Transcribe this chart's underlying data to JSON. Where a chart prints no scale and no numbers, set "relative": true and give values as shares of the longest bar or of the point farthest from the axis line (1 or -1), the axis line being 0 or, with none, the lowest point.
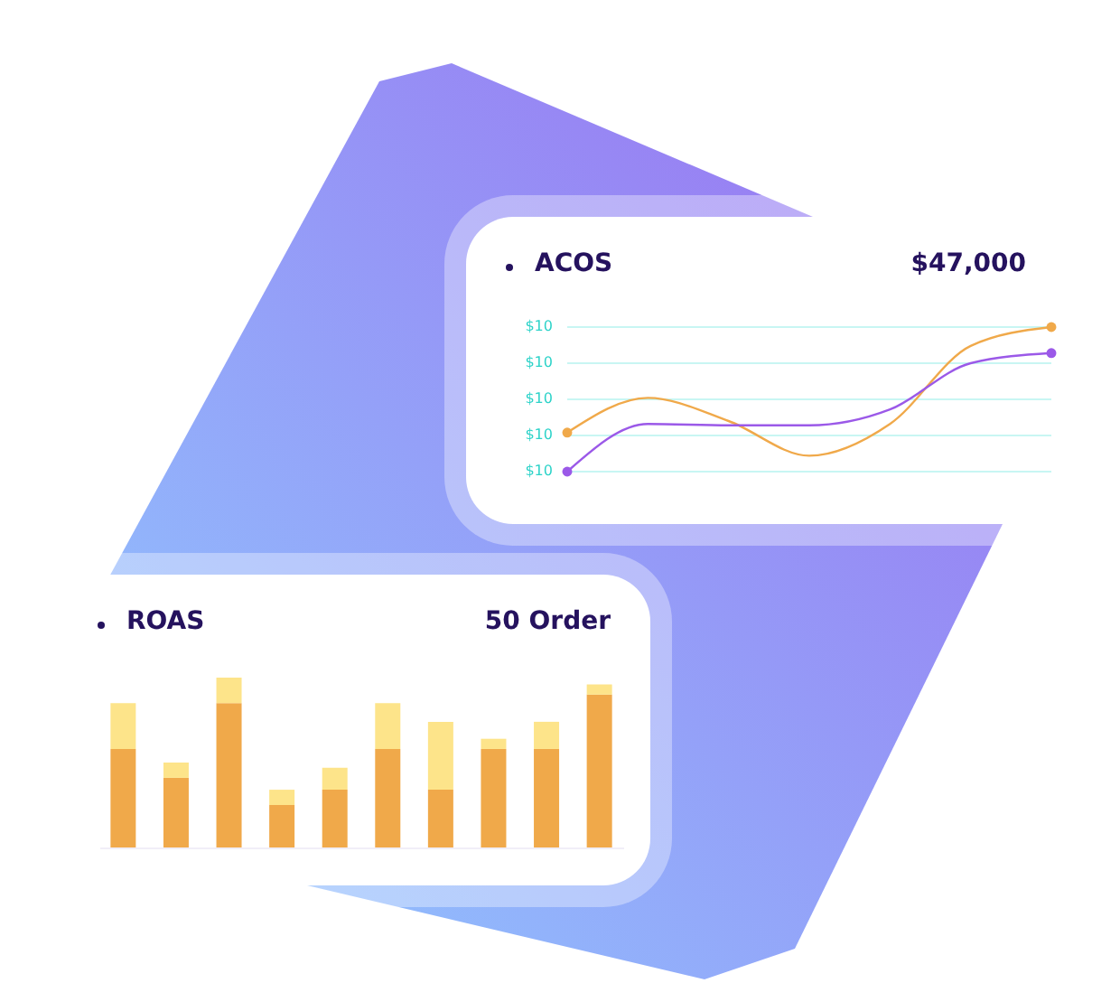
{
  "chart_data": [
    {
      "type": "line",
      "title": "ACOS",
      "subtitle": "$47,000",
      "categories": [
        null,
        null,
        null,
        null,
        null,
        null,
        null
      ],
      "relative": true,
      "ref_lines": [
        {
          "axis": "y",
          "value": 1,
          "color": "#c8f6f3"
        },
        {
          "axis": "y",
          "value": 0.75,
          "color": "#c8f6f3"
        },
        {
          "axis": "y",
          "value": 0.5,
          "color": "#c8f6f3"
        },
        {
          "axis": "y",
          "value": 0.25,
          "color": "#c8f6f3"
        },
        {
          "axis": "y",
          "value": 0,
          "color": "#c8f6f3"
        }
      ],
      "annotations": [
        "$10",
        "$10",
        "$10",
        "$10",
        "$10"
      ],
      "series": [
        {
          "color": "#f0a94a",
          "values": [
            0.27,
            0.51,
            0.35,
            0.11,
            0.33,
            0.87,
            1
          ]
        },
        {
          "color": "#9b59e8",
          "values": [
            0,
            0.33,
            0.32,
            0.32,
            0.43,
            0.75,
            0.82
          ]
        }
      ]
    },
    {
      "type": "bar",
      "title": "ROAS",
      "subtitle": "50 Order",
      "categories": [
        null,
        null,
        null,
        null,
        null,
        null,
        null,
        null,
        null,
        null
      ],
      "relative": true,
      "stacked": true,
      "series": [
        {
          "color": "#f0a94a",
          "values": [
            0.58,
            0.41,
            0.85,
            0.25,
            0.34,
            0.58,
            0.34,
            0.58,
            0.58,
            0.9
          ]
        },
        {
          "color": "#fde48a",
          "values": [
            0.27,
            0.09,
            0.15,
            0.09,
            0.13,
            0.27,
            0.4,
            0.06,
            0.16,
            0.06
          ]
        }
      ]
    }
  ]
}
